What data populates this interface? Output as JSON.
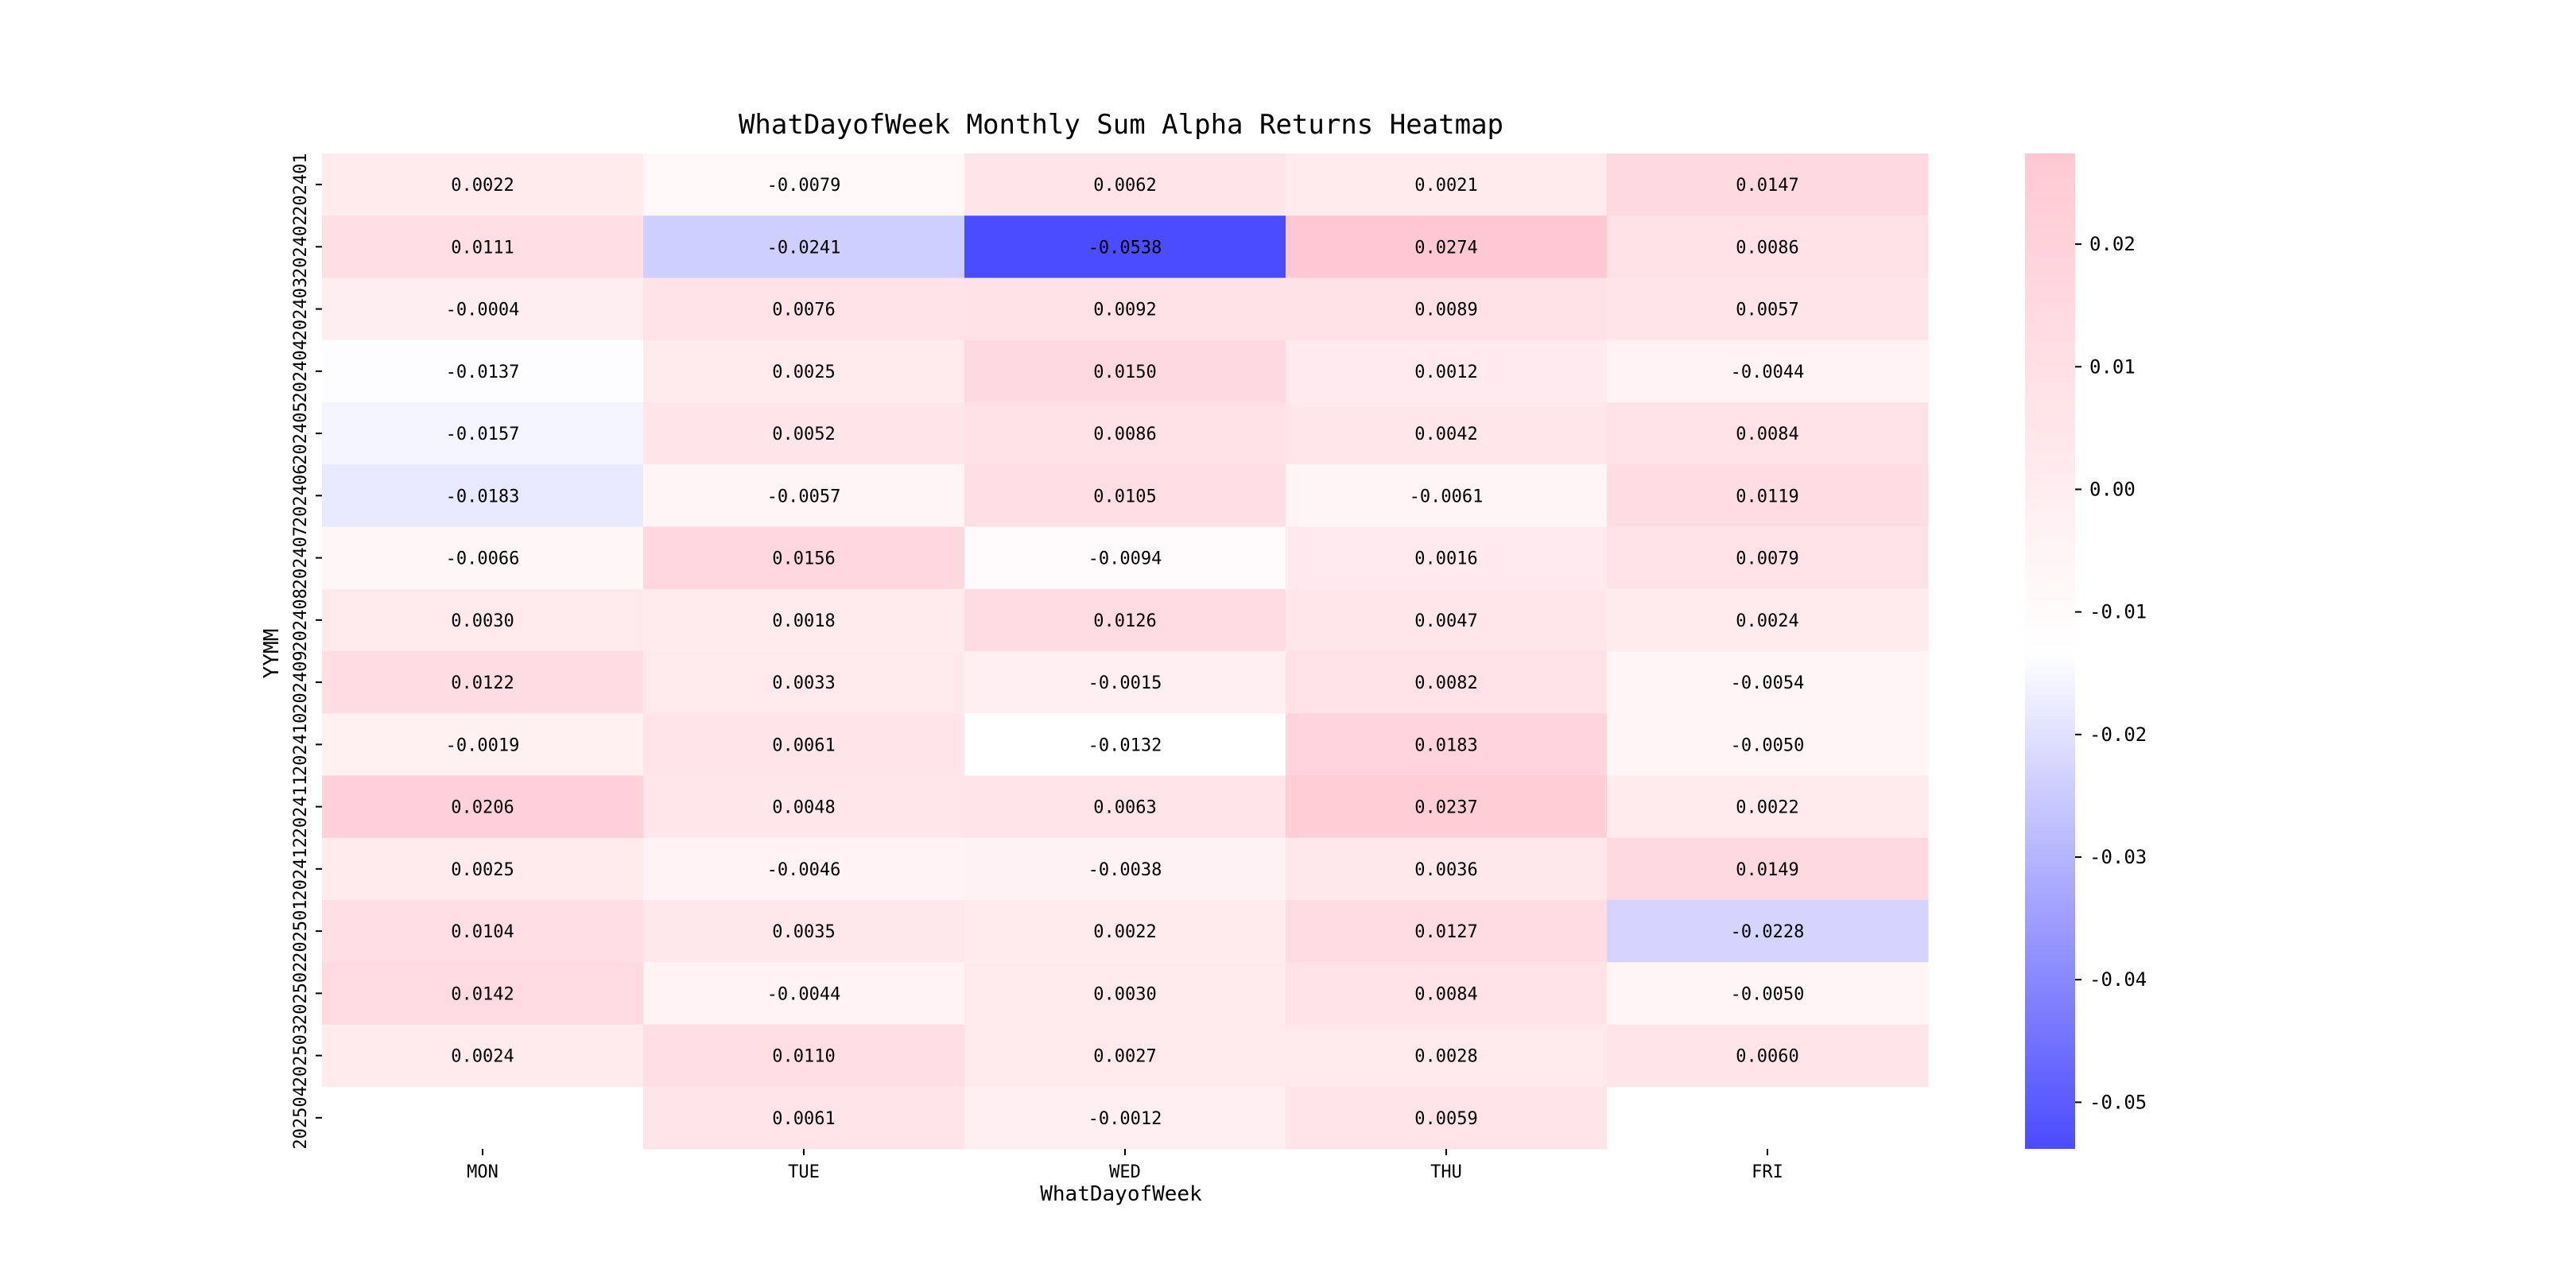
{
  "chart_data": {
    "type": "heatmap",
    "title": "WhatDayofWeek Monthly Sum Alpha Returns Heatmap",
    "xlabel": "WhatDayofWeek",
    "ylabel": "YYMM",
    "columns": [
      "MON",
      "TUE",
      "WED",
      "THU",
      "FRI"
    ],
    "rows": [
      "202401",
      "202402",
      "202403",
      "202404",
      "202405",
      "202406",
      "202407",
      "202408",
      "202409",
      "202410",
      "202411",
      "202412",
      "202501",
      "202502",
      "202503",
      "202504"
    ],
    "values": [
      [
        0.0022,
        -0.0079,
        0.0062,
        0.0021,
        0.0147
      ],
      [
        0.0111,
        -0.0241,
        -0.0538,
        0.0274,
        0.0086
      ],
      [
        -0.0004,
        0.0076,
        0.0092,
        0.0089,
        0.0057
      ],
      [
        -0.0137,
        0.0025,
        0.015,
        0.0012,
        -0.0044
      ],
      [
        -0.0157,
        0.0052,
        0.0086,
        0.0042,
        0.0084
      ],
      [
        -0.0183,
        -0.0057,
        0.0105,
        -0.0061,
        0.0119
      ],
      [
        -0.0066,
        0.0156,
        -0.0094,
        0.0016,
        0.0079
      ],
      [
        0.003,
        0.0018,
        0.0126,
        0.0047,
        0.0024
      ],
      [
        0.0122,
        0.0033,
        -0.0015,
        0.0082,
        -0.0054
      ],
      [
        -0.0019,
        0.0061,
        -0.0132,
        0.0183,
        -0.005
      ],
      [
        0.0206,
        0.0048,
        0.0063,
        0.0237,
        0.0022
      ],
      [
        0.0025,
        -0.0046,
        -0.0038,
        0.0036,
        0.0149
      ],
      [
        0.0104,
        0.0035,
        0.0022,
        0.0127,
        -0.0228
      ],
      [
        0.0142,
        -0.0044,
        0.003,
        0.0084,
        -0.005
      ],
      [
        0.0024,
        0.011,
        0.0027,
        0.0028,
        0.006
      ],
      [
        null,
        0.0061,
        -0.0012,
        0.0059,
        null
      ]
    ],
    "labels": [
      [
        "0.0022",
        "-0.0079",
        "0.0062",
        "0.0021",
        "0.0147"
      ],
      [
        "0.0111",
        "-0.0241",
        "-0.0538",
        "0.0274",
        "0.0086"
      ],
      [
        "-0.0004",
        "0.0076",
        "0.0092",
        "0.0089",
        "0.0057"
      ],
      [
        "-0.0137",
        "0.0025",
        "0.0150",
        "0.0012",
        "-0.0044"
      ],
      [
        "-0.0157",
        "0.0052",
        "0.0086",
        "0.0042",
        "0.0084"
      ],
      [
        "-0.0183",
        "-0.0057",
        "0.0105",
        "-0.0061",
        "0.0119"
      ],
      [
        "-0.0066",
        "0.0156",
        "-0.0094",
        "0.0016",
        "0.0079"
      ],
      [
        "0.0030",
        "0.0018",
        "0.0126",
        "0.0047",
        "0.0024"
      ],
      [
        "0.0122",
        "0.0033",
        "-0.0015",
        "0.0082",
        "-0.0054"
      ],
      [
        "-0.0019",
        "0.0061",
        "-0.0132",
        "0.0183",
        "-0.0050"
      ],
      [
        "0.0206",
        "0.0048",
        "0.0063",
        "0.0237",
        "0.0022"
      ],
      [
        "0.0025",
        "-0.0046",
        "-0.0038",
        "0.0036",
        "0.0149"
      ],
      [
        "0.0104",
        "0.0035",
        "0.0022",
        "0.0127",
        "-0.0228"
      ],
      [
        "0.0142",
        "-0.0044",
        "0.0030",
        "0.0084",
        "-0.0050"
      ],
      [
        "0.0024",
        "0.0110",
        "0.0027",
        "0.0028",
        "0.0060"
      ],
      [
        null,
        "0.0061",
        "-0.0012",
        "0.0059",
        null
      ]
    ],
    "colorbar": {
      "range": [
        -0.0538,
        0.0274
      ],
      "center": -0.0132,
      "ticks": [
        0.02,
        0.01,
        0.0,
        -0.01,
        -0.02,
        -0.03,
        -0.04,
        -0.05
      ],
      "tick_labels": [
        "0.02",
        "0.01",
        "0.00",
        "-0.01",
        "-0.02",
        "-0.03",
        "-0.04",
        "-0.05"
      ],
      "low_color": "#4b4bff",
      "mid_color": "#ffffff",
      "high_color": "#ffc8d2"
    }
  }
}
